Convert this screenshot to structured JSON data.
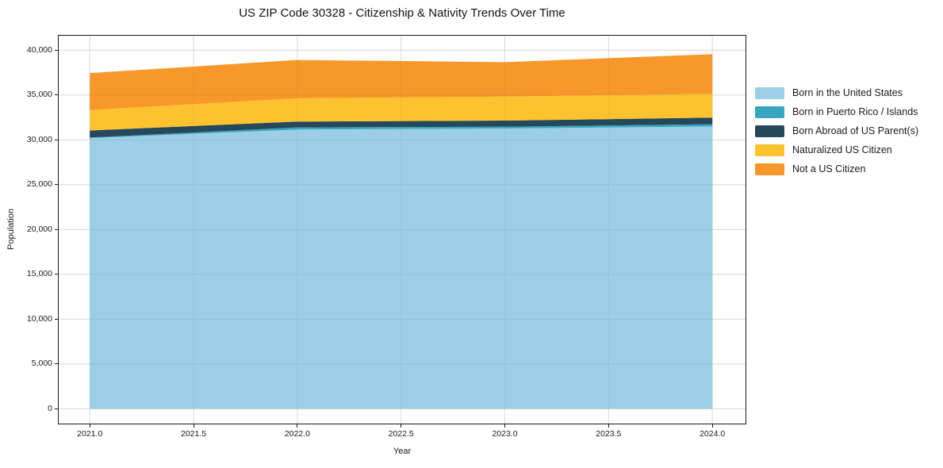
{
  "chart_data": {
    "type": "area",
    "stacked": true,
    "title": "US ZIP Code 30328 - Citizenship & Nativity Trends Over Time",
    "xlabel": "Year",
    "ylabel": "Population",
    "x": [
      2021.0,
      2022.0,
      2023.0,
      2024.0
    ],
    "series": [
      {
        "key": "born-us",
        "name": "Born in the United States",
        "color": "#9CCFE6",
        "values": [
          30200,
          31150,
          31270,
          31500
        ]
      },
      {
        "key": "born-pr",
        "name": "Born in Puerto Rico / Islands",
        "color": "#39A5C0",
        "values": [
          60,
          240,
          200,
          240
        ]
      },
      {
        "key": "born-abroad",
        "name": "Born Abroad of US Parent(s)",
        "color": "#25485A",
        "values": [
          790,
          650,
          680,
          740
        ]
      },
      {
        "key": "naturalized",
        "name": "Naturalized US Citizen",
        "color": "#FDC32E",
        "values": [
          2280,
          2590,
          2680,
          2650
        ]
      },
      {
        "key": "not-citizen",
        "name": "Not a US Citizen",
        "color": "#F8982A",
        "values": [
          4120,
          4280,
          3840,
          4430
        ]
      }
    ],
    "x_ticks": {
      "values": [
        2021.0,
        2021.5,
        2022.0,
        2022.5,
        2023.0,
        2023.5,
        2024.0
      ],
      "labels": [
        "2021.0",
        "2021.5",
        "2022.0",
        "2022.5",
        "2023.0",
        "2023.5",
        "2024.0"
      ]
    },
    "y_ticks": {
      "values": [
        0,
        5000,
        10000,
        15000,
        20000,
        25000,
        30000,
        35000,
        40000
      ],
      "labels": [
        "0",
        "5,000",
        "10,000",
        "15,000",
        "20,000",
        "25,000",
        "30,000",
        "35,000",
        "40,000"
      ]
    },
    "xlim": [
      2020.85,
      2024.16
    ],
    "ylim": [
      -1650,
      41620
    ],
    "grid": true,
    "legend_position": "right-outside",
    "colors": {
      "spine": "#1a1a1a",
      "grid": "#e7e7e7",
      "text": "#1a1a1a",
      "background": "#ffffff"
    }
  }
}
